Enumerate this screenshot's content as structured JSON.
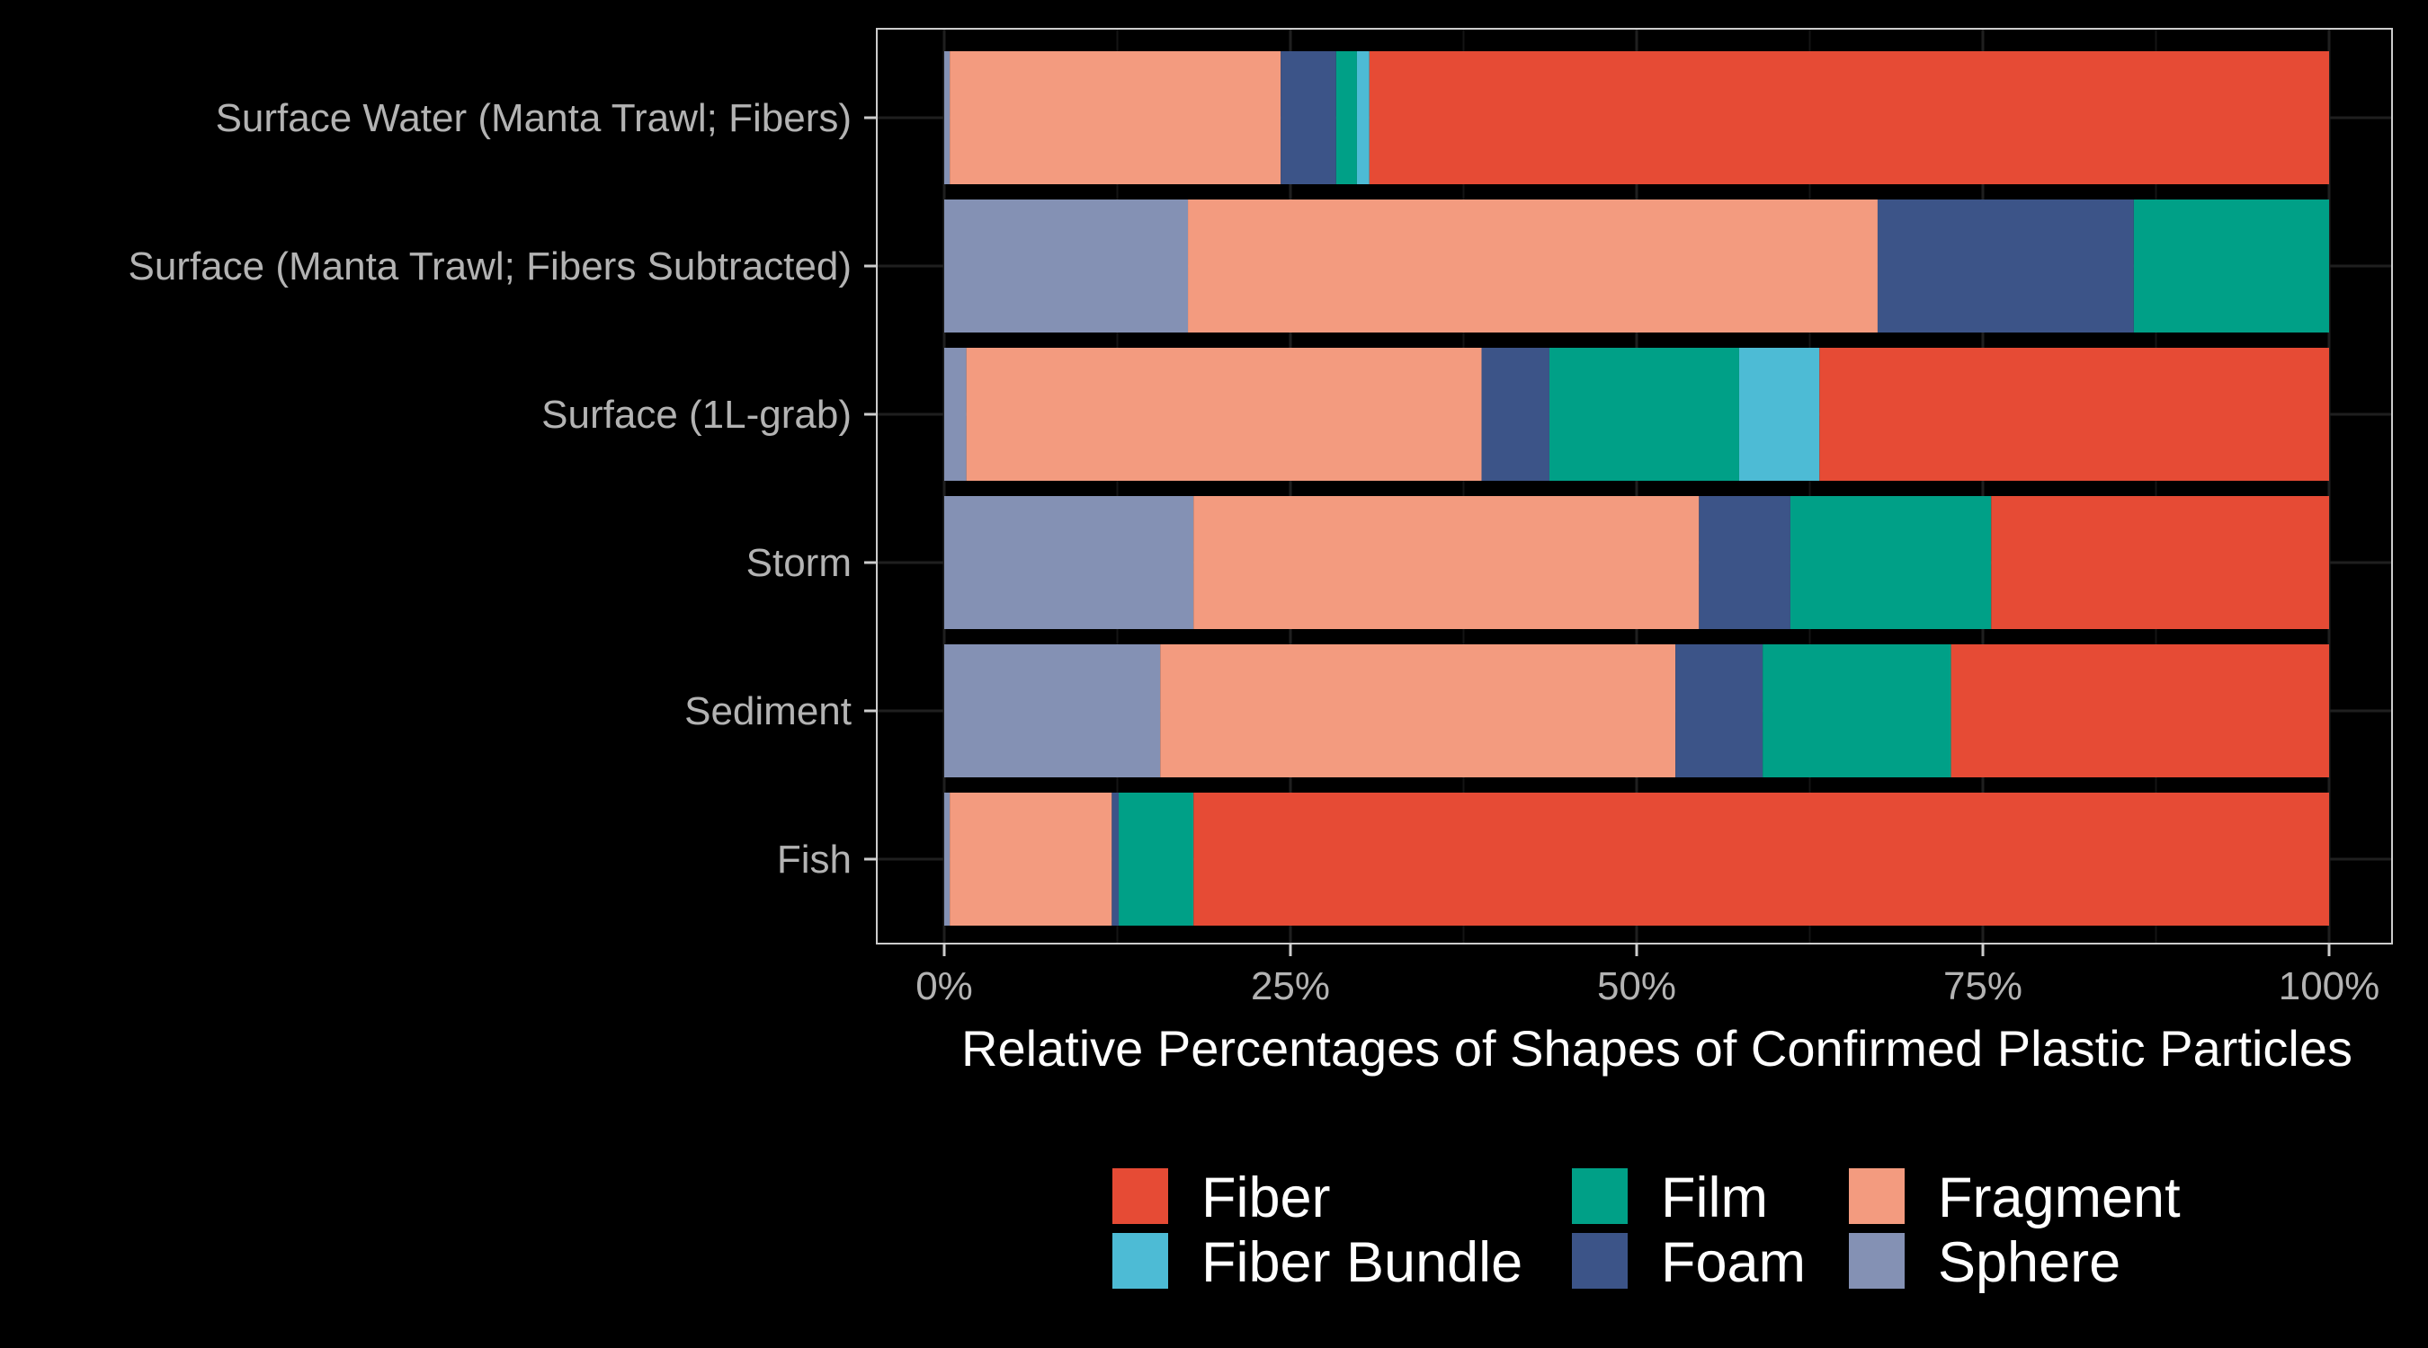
{
  "chart_data": {
    "type": "bar",
    "orientation": "horizontal",
    "stacked": true,
    "normalized": true,
    "xlabel": "Relative Percentages of Shapes of Confirmed Plastic Particles",
    "ylabel": "",
    "xlim": [
      0,
      100
    ],
    "x_ticks": [
      "0%",
      "25%",
      "50%",
      "75%",
      "100%"
    ],
    "grid": true,
    "legend_position": "bottom",
    "categories": [
      "Surface Water (Manta Trawl; Fibers)",
      "Surface (Manta Trawl; Fibers Subtracted)",
      "Surface (1L-grab)",
      "Storm",
      "Sediment",
      "Fish"
    ],
    "stack_order": [
      "Sphere",
      "Fragment",
      "Foam",
      "Film",
      "Fiber Bundle",
      "Fiber"
    ],
    "legend_order": [
      "Fiber",
      "Film",
      "Fragment",
      "Fiber Bundle",
      "Foam",
      "Sphere"
    ],
    "series": [
      {
        "name": "Sphere",
        "color": "#8491b4",
        "values": [
          0.4,
          17.6,
          1.6,
          18.0,
          15.6,
          0.4
        ]
      },
      {
        "name": "Fragment",
        "color": "#f39b7f",
        "values": [
          23.9,
          49.8,
          37.2,
          36.5,
          37.2,
          11.7
        ]
      },
      {
        "name": "Foam",
        "color": "#3c5488",
        "values": [
          4.0,
          18.5,
          4.9,
          6.6,
          6.3,
          0.5
        ]
      },
      {
        "name": "Film",
        "color": "#00a087",
        "values": [
          1.5,
          14.1,
          13.7,
          14.5,
          13.6,
          5.4
        ]
      },
      {
        "name": "Fiber Bundle",
        "color": "#4dbbd5",
        "values": [
          0.9,
          0.0,
          5.8,
          0.0,
          0.0,
          0.0
        ]
      },
      {
        "name": "Fiber",
        "color": "#e64b35",
        "values": [
          69.3,
          0.0,
          36.8,
          24.4,
          27.3,
          82.0
        ]
      }
    ]
  }
}
